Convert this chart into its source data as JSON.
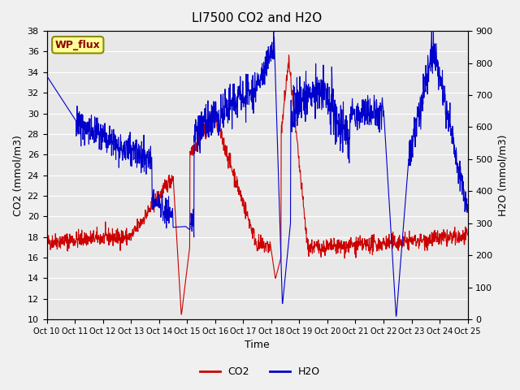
{
  "title": "LI7500 CO2 and H2O",
  "xlabel": "Time",
  "ylabel_left": "CO2 (mmol/m3)",
  "ylabel_right": "H2O (mmol/m3)",
  "legend_label": "WP_flux",
  "legend_label_color": "#8B0000",
  "legend_box_fill": "#FFFF99",
  "legend_box_edge": "#8B8B00",
  "co2_color": "#CC0000",
  "h2o_color": "#0000CC",
  "background_color": "#E8E8E8",
  "grid_color": "#FFFFFF",
  "ylim_left": [
    10,
    38
  ],
  "ylim_right": [
    0,
    900
  ],
  "yticks_left": [
    10,
    12,
    14,
    16,
    18,
    20,
    22,
    24,
    26,
    28,
    30,
    32,
    34,
    36,
    38
  ],
  "yticks_right": [
    0,
    100,
    200,
    300,
    400,
    500,
    600,
    700,
    800,
    900
  ],
  "xtick_labels": [
    "Oct 10",
    "Oct 11",
    "Oct 12",
    "Oct 13",
    "Oct 14",
    "Oct 15",
    "Oct 16",
    "Oct 17",
    "Oct 18",
    "Oct 19",
    "Oct 20",
    "Oct 21",
    "Oct 22",
    "Oct 23",
    "Oct 24",
    "Oct 25"
  ],
  "n_points": 1500,
  "seed": 42
}
